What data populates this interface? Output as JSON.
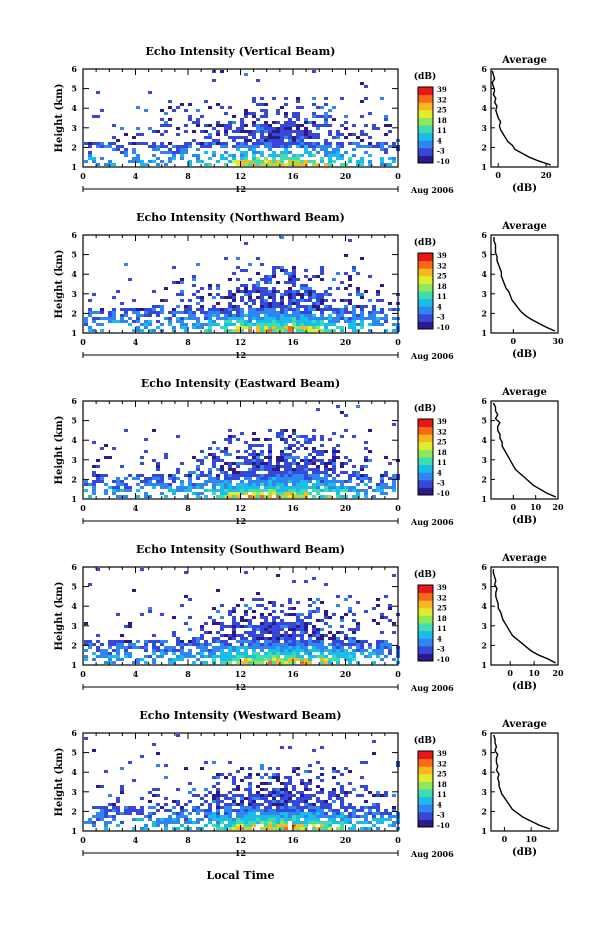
{
  "figure": {
    "xlabel": "Local Time",
    "colorbar_unit": "(dB)",
    "colorbar_ticks": [
      "39",
      "32",
      "25",
      "18",
      "11",
      "4",
      "-3",
      "-10"
    ],
    "colorbar_colors": [
      "#2b1a8a",
      "#3548d8",
      "#2f86f0",
      "#19bde8",
      "#3fdcb0",
      "#8fe85a",
      "#e0ec30",
      "#f8b820",
      "#f86a18",
      "#e81818"
    ],
    "xticks": [
      "0",
      "4",
      "8",
      "12",
      "16",
      "20",
      "0"
    ],
    "date_row": {
      "left": "12",
      "right": "Aug 2006"
    }
  },
  "chart_data": [
    {
      "type": "heatmap",
      "title": "Echo Intensity (Vertical Beam)",
      "ylabel": "Height (km)",
      "x_range": [
        0,
        24
      ],
      "y_range": [
        1,
        6
      ],
      "yticks": [
        "1",
        "2",
        "3",
        "4",
        "5",
        "6"
      ],
      "profile": {
        "title": "Average",
        "xlabel": "(dB)",
        "xlim": [
          -3,
          25
        ],
        "xticks": [
          {
            "v": 0,
            "label": "0"
          },
          {
            "v": 20,
            "label": "20"
          }
        ],
        "heights": [
          1.1,
          1.3,
          1.5,
          1.7,
          1.9,
          2.1,
          2.3,
          2.5,
          2.7,
          2.9,
          3.1,
          3.3,
          3.5,
          3.7,
          3.9,
          4.1,
          4.3,
          4.5,
          4.7,
          4.9,
          5.1,
          5.3,
          5.5,
          5.7,
          5.9
        ],
        "values": [
          22,
          17,
          13,
          10,
          7,
          6,
          4,
          3,
          2,
          1,
          0.5,
          1,
          0,
          -0.5,
          -1,
          -0.5,
          -1.5,
          -1,
          -2,
          -1.5,
          -2,
          -2.5,
          -1.5,
          -2,
          -2.5
        ]
      }
    },
    {
      "type": "heatmap",
      "title": "Echo Intensity (Northward Beam)",
      "ylabel": "Height (km)",
      "x_range": [
        0,
        24
      ],
      "y_range": [
        1,
        6
      ],
      "yticks": [
        "1",
        "2",
        "3",
        "4",
        "5",
        "6"
      ],
      "profile": {
        "title": "Average",
        "xlabel": "(dB)",
        "xlim": [
          -15,
          30
        ],
        "xticks": [
          {
            "v": 0,
            "label": "0"
          },
          {
            "v": 30,
            "label": "30"
          }
        ],
        "heights": [
          1.1,
          1.3,
          1.5,
          1.7,
          1.9,
          2.1,
          2.3,
          2.5,
          2.7,
          2.9,
          3.1,
          3.3,
          3.5,
          3.7,
          3.9,
          4.1,
          4.3,
          4.5,
          4.7,
          4.9,
          5.1,
          5.3,
          5.5,
          5.7,
          5.9
        ],
        "values": [
          28,
          22,
          17,
          12,
          8,
          5,
          3,
          1,
          -1,
          -2,
          -3,
          -5,
          -6,
          -7,
          -8,
          -8,
          -9,
          -10,
          -11,
          -11,
          -12,
          -12,
          -12,
          -13,
          -13
        ]
      }
    },
    {
      "type": "heatmap",
      "title": "Echo Intensity (Eastward Beam)",
      "ylabel": "Height (km)",
      "x_range": [
        0,
        24
      ],
      "y_range": [
        1,
        6
      ],
      "yticks": [
        "1",
        "2",
        "3",
        "4",
        "5",
        "6"
      ],
      "profile": {
        "title": "Average",
        "xlabel": "(dB)",
        "xlim": [
          -10,
          20
        ],
        "xticks": [
          {
            "v": 0,
            "label": "0"
          },
          {
            "v": 10,
            "label": "10"
          },
          {
            "v": 20,
            "label": "20"
          }
        ],
        "heights": [
          1.1,
          1.3,
          1.5,
          1.7,
          1.9,
          2.1,
          2.3,
          2.5,
          2.7,
          2.9,
          3.1,
          3.3,
          3.5,
          3.7,
          3.9,
          4.1,
          4.3,
          4.5,
          4.7,
          4.9,
          5.1,
          5.3,
          5.5,
          5.7,
          5.9
        ],
        "values": [
          19,
          15,
          12,
          9,
          7,
          5,
          3,
          1,
          0,
          -1,
          -2,
          -3,
          -4,
          -5,
          -5,
          -6,
          -6,
          -7,
          -7,
          -6,
          -8,
          -7,
          -8,
          -8,
          -9
        ]
      }
    },
    {
      "type": "heatmap",
      "title": "Echo Intensity (Southward Beam)",
      "ylabel": "Height (km)",
      "x_range": [
        0,
        24
      ],
      "y_range": [
        1,
        6
      ],
      "yticks": [
        "1",
        "2",
        "3",
        "4",
        "5",
        "6"
      ],
      "profile": {
        "title": "Average",
        "xlabel": "(dB)",
        "xlim": [
          -8,
          20
        ],
        "xticks": [
          {
            "v": 0,
            "label": "0"
          },
          {
            "v": 10,
            "label": "10"
          },
          {
            "v": 20,
            "label": "20"
          }
        ],
        "heights": [
          1.1,
          1.3,
          1.5,
          1.7,
          1.9,
          2.1,
          2.3,
          2.5,
          2.7,
          2.9,
          3.1,
          3.3,
          3.5,
          3.7,
          3.9,
          4.1,
          4.3,
          4.5,
          4.7,
          4.9,
          5.1,
          5.3,
          5.5,
          5.7,
          5.9
        ],
        "values": [
          19,
          16,
          12,
          9,
          7,
          5,
          3,
          1,
          0,
          -1,
          -2,
          -3,
          -3.5,
          -4,
          -5,
          -5,
          -5.5,
          -6,
          -6,
          -5.5,
          -6.5,
          -6,
          -6.5,
          -7,
          -7
        ]
      }
    },
    {
      "type": "heatmap",
      "title": "Echo Intensity (Westward Beam)",
      "ylabel": "Height (km)",
      "x_range": [
        0,
        24
      ],
      "y_range": [
        1,
        6
      ],
      "yticks": [
        "1",
        "2",
        "3",
        "4",
        "5",
        "6"
      ],
      "profile": {
        "title": "Average",
        "xlabel": "(dB)",
        "xlim": [
          -5,
          20
        ],
        "xticks": [
          {
            "v": 0,
            "label": "0"
          },
          {
            "v": 10,
            "label": "10"
          }
        ],
        "heights": [
          1.1,
          1.3,
          1.5,
          1.7,
          1.9,
          2.1,
          2.3,
          2.5,
          2.7,
          2.9,
          3.1,
          3.3,
          3.5,
          3.7,
          3.9,
          4.1,
          4.3,
          4.5,
          4.7,
          4.9,
          5.1,
          5.3,
          5.5,
          5.7,
          5.9
        ],
        "values": [
          17,
          13,
          10,
          7,
          5,
          3,
          2,
          1,
          0,
          -1,
          -1.5,
          -2,
          -2,
          -2.5,
          -2,
          -3,
          -2.5,
          -3,
          -3,
          -2.5,
          -3.5,
          -3,
          -3.5,
          -3.5,
          -4
        ]
      }
    }
  ]
}
